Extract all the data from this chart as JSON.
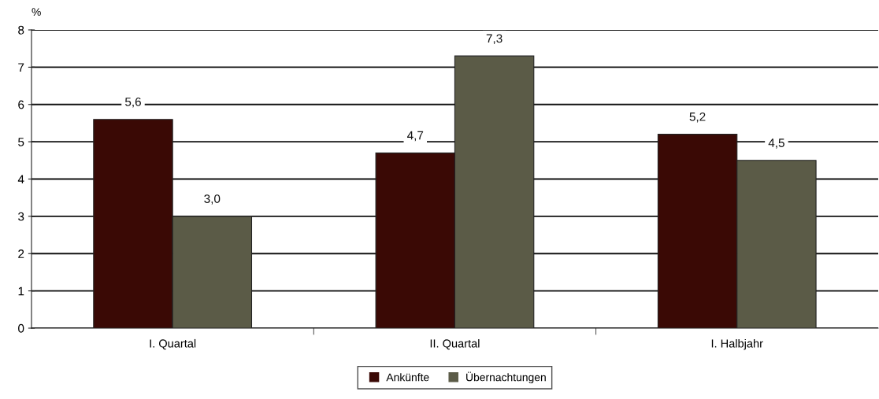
{
  "chart_data": {
    "type": "bar",
    "ylabel": "%",
    "categories": [
      "I. Quartal",
      "II. Quartal",
      "I. Halbjahr"
    ],
    "series": [
      {
        "name": "Ankünfte",
        "color": "#3a0905",
        "values": [
          5.6,
          4.7,
          5.2
        ],
        "value_labels": [
          "5,6",
          "4,7",
          "5,2"
        ]
      },
      {
        "name": "Übernachtungen",
        "color": "#5b5b47",
        "values": [
          3.0,
          7.3,
          4.5
        ],
        "value_labels": [
          "3,0",
          "7,3",
          "4,5"
        ]
      }
    ],
    "ylim": [
      0,
      8
    ],
    "yticks": [
      0,
      1,
      2,
      3,
      4,
      5,
      6,
      7,
      8
    ],
    "grid": "y",
    "legend": "bottom"
  }
}
